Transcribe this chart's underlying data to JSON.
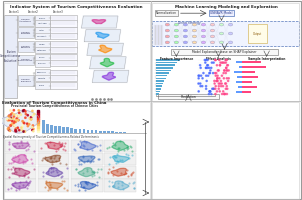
{
  "panel_tl_title": "Indicator System of Tourism Competitiveness Evaluation",
  "panel_tr_title": "Machine Learning Modeling and Exploration",
  "panel_bl_title": "Evaluation of Tourism Competitiveness in China",
  "panel_bl_subtitle": "Provincial Tourism Competitiveness of Chinese Cities",
  "panel_bl_subtitle2": "Spatial Heterogeneity of Tourism Competitiveness-Related Determinants",
  "shap_cols": [
    "Feature Importance",
    "Effect Analysis",
    "Sample Interpretation"
  ],
  "normalization_label": "Normalization",
  "gnnavr_label": "GNNAVR Model",
  "tuning_label": "Tuning Strategy",
  "shap_label": "Model Explanation base on SHAP Explainer",
  "prediction_label": "Prediction",
  "map_colors_tl": [
    "#d63091",
    "#2299ee",
    "#ff8800",
    "#22bb44",
    "#8833dd"
  ],
  "map_colors_grid": [
    "#aa44aa",
    "#cc2244",
    "#4466cc",
    "#22aa66",
    "#cc44aa",
    "#884422",
    "#3366bb",
    "#33aacc",
    "#aa2266",
    "#6644aa",
    "#44aa88",
    "#cc4422",
    "#8833aa",
    "#cc6622",
    "#2255bb",
    "#55aacc"
  ],
  "bar_blue": "#3399cc",
  "bar_label_color": "#555555",
  "effect_pos": "#ff4488",
  "effect_neg": "#4466ff",
  "sample_pos": "#ff2266",
  "sample_neg": "#4488ff",
  "divx": 0.495,
  "divy": 0.495,
  "bg": "#ffffff",
  "border": "#aaaaaa",
  "level1_col": "#e8ecf8",
  "level2_col": "#f0f2fa",
  "level3_col": "#f8f8ff",
  "header_l1": "Factor1",
  "header_l2": "Factor2",
  "header_l3": "Factor3"
}
